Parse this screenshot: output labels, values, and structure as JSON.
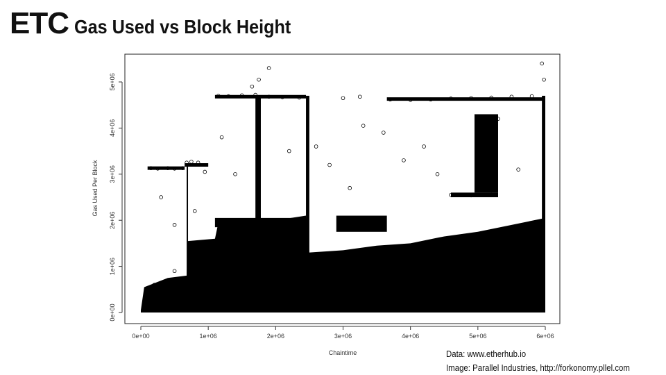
{
  "title": {
    "main": "ETC",
    "sub": "Gas Used vs Block Height"
  },
  "credits": {
    "data_line": "Data: www.etherhub.io",
    "image_line": "Image: Parallel Industries, http://forkonomy.pllel.com"
  },
  "chart_data": {
    "type": "scatter",
    "title": "",
    "xlabel": "Chaintime",
    "ylabel": "Gas Used Per Block",
    "xlim": [
      0,
      6000000
    ],
    "ylim": [
      0,
      5400000
    ],
    "x_ticks": [
      0,
      1000000,
      2000000,
      3000000,
      4000000,
      5000000,
      6000000
    ],
    "x_tick_labels": [
      "0e+00",
      "1e+06",
      "2e+06",
      "3e+06",
      "4e+06",
      "5e+06",
      "6e+06"
    ],
    "y_ticks": [
      0,
      1000000,
      2000000,
      3000000,
      4000000,
      5000000
    ],
    "y_tick_labels": [
      "0e+00",
      "1e+06",
      "2e+06",
      "3e+06",
      "4e+06",
      "5e+06"
    ],
    "marker": "open-circle",
    "marker_color": "#000000",
    "grid": false,
    "series": [
      {
        "points": [
          [
            150000,
            3130000
          ],
          [
            250000,
            3120000
          ],
          [
            400000,
            3130000
          ],
          [
            500000,
            3120000
          ],
          [
            620000,
            3130000
          ],
          [
            680000,
            3250000
          ],
          [
            750000,
            3270000
          ],
          [
            850000,
            3250000
          ],
          [
            950000,
            3050000
          ],
          [
            1150000,
            4700000
          ],
          [
            1300000,
            4690000
          ],
          [
            1500000,
            4710000
          ],
          [
            1700000,
            4720000
          ],
          [
            1900000,
            4680000
          ],
          [
            2100000,
            4670000
          ],
          [
            2350000,
            4660000
          ],
          [
            1750000,
            5050000
          ],
          [
            1900000,
            5300000
          ],
          [
            1650000,
            4900000
          ],
          [
            1150000,
            2000000
          ],
          [
            1400000,
            1980000
          ],
          [
            1700000,
            1990000
          ],
          [
            2000000,
            1950000
          ],
          [
            3000000,
            4650000
          ],
          [
            3250000,
            4680000
          ],
          [
            3700000,
            4620000
          ],
          [
            4000000,
            4610000
          ],
          [
            4300000,
            4620000
          ],
          [
            4600000,
            4640000
          ],
          [
            4900000,
            4650000
          ],
          [
            5200000,
            4660000
          ],
          [
            5500000,
            4680000
          ],
          [
            5800000,
            4690000
          ],
          [
            4600000,
            2550000
          ],
          [
            4900000,
            2540000
          ],
          [
            5200000,
            2560000
          ],
          [
            5300000,
            4200000
          ],
          [
            5000000,
            3300000
          ],
          [
            5950000,
            5400000
          ],
          [
            5980000,
            5050000
          ],
          [
            3000000,
            1850000
          ],
          [
            3300000,
            1900000
          ],
          [
            3500000,
            2000000
          ],
          [
            300000,
            2500000
          ],
          [
            500000,
            1900000
          ],
          [
            800000,
            2200000
          ],
          [
            1200000,
            3800000
          ],
          [
            1400000,
            3000000
          ],
          [
            2200000,
            3500000
          ],
          [
            2600000,
            3600000
          ],
          [
            2800000,
            3200000
          ],
          [
            3100000,
            2700000
          ],
          [
            3300000,
            4050000
          ],
          [
            3600000,
            3900000
          ],
          [
            3900000,
            3300000
          ],
          [
            4200000,
            3600000
          ],
          [
            4400000,
            3000000
          ],
          [
            5600000,
            3100000
          ],
          [
            200000,
            600000
          ],
          [
            500000,
            900000
          ],
          [
            1000000,
            1200000
          ],
          [
            1500000,
            800000
          ],
          [
            2000000,
            1100000
          ],
          [
            2500000,
            900000
          ],
          [
            3000000,
            700000
          ],
          [
            3500000,
            1000000
          ],
          [
            4000000,
            1200000
          ],
          [
            4500000,
            1300000
          ],
          [
            5000000,
            1400000
          ],
          [
            5500000,
            1500000
          ],
          [
            5900000,
            1700000
          ]
        ]
      }
    ]
  }
}
